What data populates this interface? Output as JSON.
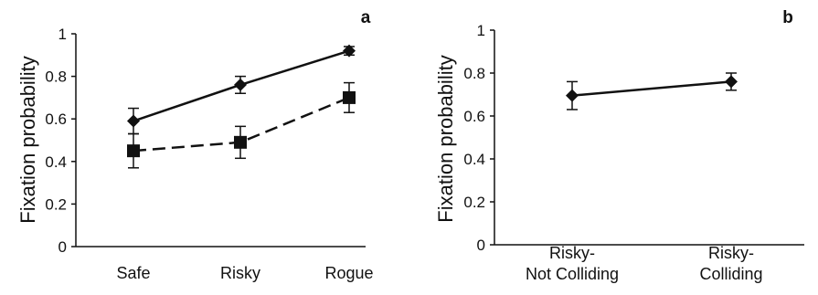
{
  "chart_data": [
    {
      "type": "line",
      "panel_label": "a",
      "ylabel": "Fixation probability",
      "xlabel": "",
      "categories": [
        "Safe",
        "Risky",
        "Rogue"
      ],
      "ylim": [
        0,
        1
      ],
      "yticks": [
        "0",
        "0.2",
        "0.4",
        "0.6",
        "0.8",
        "1"
      ],
      "series": [
        {
          "style": "solid",
          "marker": "diamond",
          "values": [
            0.59,
            0.76,
            0.92
          ],
          "errors": [
            0.06,
            0.04,
            0.02
          ]
        },
        {
          "style": "dashed",
          "marker": "square",
          "values": [
            0.45,
            0.49,
            0.7
          ],
          "errors": [
            0.08,
            0.075,
            0.07
          ]
        }
      ]
    },
    {
      "type": "line",
      "panel_label": "b",
      "ylabel": "Fixation probability",
      "xlabel": "",
      "categories": [
        [
          "Risky-",
          "Not Colliding"
        ],
        [
          "Risky-",
          "Colliding"
        ]
      ],
      "ylim": [
        0,
        1
      ],
      "yticks": [
        "0",
        "0.2",
        "0.4",
        "0.6",
        "0.8",
        "1"
      ],
      "series": [
        {
          "style": "solid",
          "marker": "diamond",
          "values": [
            0.695,
            0.76
          ],
          "errors": [
            0.065,
            0.04
          ]
        }
      ]
    }
  ]
}
